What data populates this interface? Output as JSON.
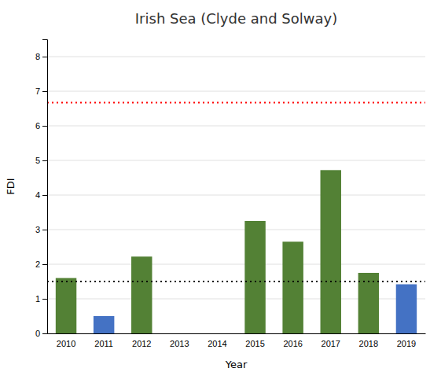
{
  "chart_data": {
    "type": "bar",
    "title": "Irish Sea (Clyde and Solway)",
    "xlabel": "Year",
    "ylabel": "FDI",
    "categories": [
      "2010",
      "2011",
      "2012",
      "2013",
      "2014",
      "2015",
      "2016",
      "2017",
      "2018",
      "2019"
    ],
    "values": [
      1.6,
      0.5,
      2.22,
      0,
      0,
      3.25,
      2.65,
      4.72,
      1.75,
      1.42
    ],
    "colors": [
      "#538135",
      "#4472C4",
      "#538135",
      "#538135",
      "#538135",
      "#538135",
      "#538135",
      "#538135",
      "#538135",
      "#4472C4"
    ],
    "reference_lines": [
      {
        "value": 6.67,
        "color": "red",
        "line_style": "dotted"
      },
      {
        "value": 1.5,
        "color": "black",
        "line_style": "dotted"
      }
    ],
    "ylim": [
      0,
      8.5
    ],
    "yticks": [
      0,
      1,
      2,
      3,
      4,
      5,
      6,
      7,
      8
    ],
    "grid": true
  }
}
